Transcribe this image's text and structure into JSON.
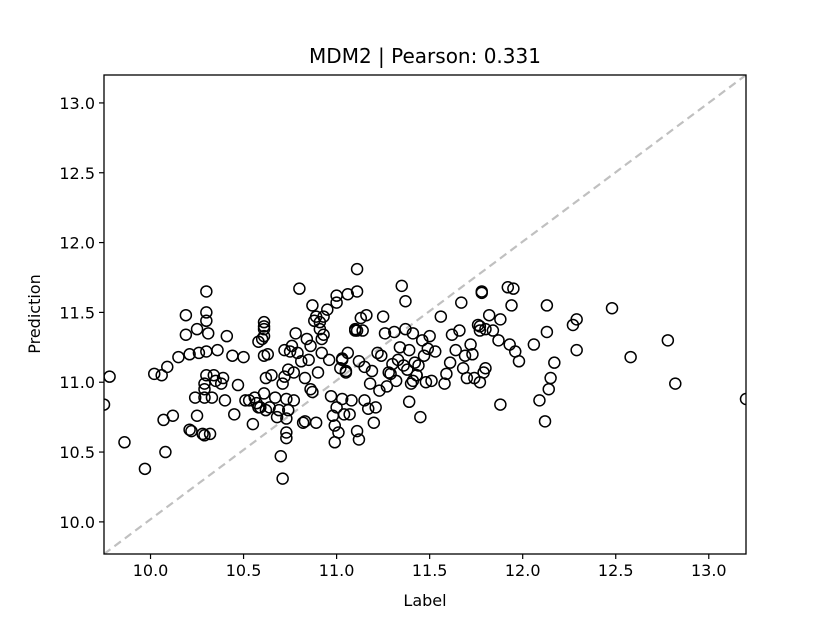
{
  "chart_data": {
    "type": "scatter",
    "title": "MDM2  |  Pearson: 0.331",
    "xlabel": "Label",
    "ylabel": "Prediction",
    "xlim": [
      9.75,
      13.2
    ],
    "ylim": [
      9.77,
      13.2
    ],
    "xticks": [
      "10.0",
      "10.5",
      "11.0",
      "11.5",
      "12.0",
      "12.5",
      "13.0"
    ],
    "yticks": [
      "10.0",
      "10.5",
      "11.0",
      "11.5",
      "12.0",
      "12.5",
      "13.0"
    ],
    "grid": false,
    "reference_line": {
      "style": "dashed",
      "color": "#c0c0c0",
      "from": [
        9.75,
        9.77
      ],
      "to": [
        13.2,
        13.2
      ]
    },
    "marker": {
      "shape": "open-circle",
      "edge_color": "#000000"
    },
    "points": [
      [
        9.75,
        10.84
      ],
      [
        9.78,
        11.04
      ],
      [
        9.86,
        10.57
      ],
      [
        9.97,
        10.38
      ],
      [
        10.02,
        11.06
      ],
      [
        10.06,
        11.05
      ],
      [
        10.07,
        10.73
      ],
      [
        10.08,
        10.5
      ],
      [
        10.09,
        11.11
      ],
      [
        10.12,
        10.76
      ],
      [
        10.15,
        11.18
      ],
      [
        10.19,
        11.48
      ],
      [
        10.19,
        11.34
      ],
      [
        10.21,
        11.2
      ],
      [
        10.21,
        10.66
      ],
      [
        10.22,
        10.65
      ],
      [
        10.24,
        10.89
      ],
      [
        10.25,
        11.38
      ],
      [
        10.25,
        10.76
      ],
      [
        10.26,
        11.21
      ],
      [
        10.28,
        10.63
      ],
      [
        10.29,
        10.99
      ],
      [
        10.29,
        10.95
      ],
      [
        10.29,
        10.89
      ],
      [
        10.29,
        10.62
      ],
      [
        10.3,
        11.65
      ],
      [
        10.3,
        11.5
      ],
      [
        10.3,
        11.44
      ],
      [
        10.3,
        11.05
      ],
      [
        10.3,
        11.22
      ],
      [
        10.31,
        11.35
      ],
      [
        10.32,
        10.63
      ],
      [
        10.33,
        10.89
      ],
      [
        10.34,
        11.05
      ],
      [
        10.35,
        11.01
      ],
      [
        10.36,
        11.23
      ],
      [
        10.38,
        10.99
      ],
      [
        10.39,
        11.03
      ],
      [
        10.4,
        10.87
      ],
      [
        10.41,
        11.33
      ],
      [
        10.44,
        11.19
      ],
      [
        10.45,
        10.77
      ],
      [
        10.47,
        10.98
      ],
      [
        10.5,
        11.18
      ],
      [
        10.51,
        10.87
      ],
      [
        10.53,
        10.87
      ],
      [
        10.55,
        10.7
      ],
      [
        10.56,
        10.89
      ],
      [
        10.57,
        10.85
      ],
      [
        10.58,
        10.82
      ],
      [
        10.58,
        11.29
      ],
      [
        10.59,
        10.82
      ],
      [
        10.6,
        11.31
      ],
      [
        10.61,
        11.43
      ],
      [
        10.61,
        11.4
      ],
      [
        10.61,
        11.38
      ],
      [
        10.61,
        11.33
      ],
      [
        10.61,
        11.19
      ],
      [
        10.61,
        10.92
      ],
      [
        10.62,
        10.8
      ],
      [
        10.62,
        11.03
      ],
      [
        10.63,
        11.2
      ],
      [
        10.64,
        10.82
      ],
      [
        10.65,
        11.05
      ],
      [
        10.67,
        10.89
      ],
      [
        10.68,
        10.75
      ],
      [
        10.69,
        10.8
      ],
      [
        10.7,
        10.47
      ],
      [
        10.71,
        10.99
      ],
      [
        10.71,
        10.31
      ],
      [
        10.72,
        11.23
      ],
      [
        10.72,
        11.04
      ],
      [
        10.73,
        10.64
      ],
      [
        10.73,
        10.6
      ],
      [
        10.73,
        10.74
      ],
      [
        10.73,
        10.88
      ],
      [
        10.74,
        10.8
      ],
      [
        10.74,
        11.09
      ],
      [
        10.75,
        11.22
      ],
      [
        10.76,
        11.26
      ],
      [
        10.77,
        11.07
      ],
      [
        10.77,
        10.87
      ],
      [
        10.78,
        11.35
      ],
      [
        10.79,
        11.21
      ],
      [
        10.8,
        11.67
      ],
      [
        10.81,
        11.15
      ],
      [
        10.82,
        10.71
      ],
      [
        10.83,
        10.72
      ],
      [
        10.83,
        11.03
      ],
      [
        10.84,
        11.31
      ],
      [
        10.85,
        11.16
      ],
      [
        10.86,
        10.95
      ],
      [
        10.86,
        11.26
      ],
      [
        10.87,
        11.55
      ],
      [
        10.87,
        10.93
      ],
      [
        10.88,
        11.44
      ],
      [
        10.89,
        11.47
      ],
      [
        10.89,
        10.71
      ],
      [
        10.9,
        11.07
      ],
      [
        10.91,
        11.38
      ],
      [
        10.91,
        11.43
      ],
      [
        10.92,
        11.31
      ],
      [
        10.92,
        11.21
      ],
      [
        10.93,
        11.47
      ],
      [
        10.93,
        11.34
      ],
      [
        10.95,
        11.52
      ],
      [
        10.96,
        11.16
      ],
      [
        10.97,
        10.9
      ],
      [
        10.98,
        10.76
      ],
      [
        10.99,
        10.57
      ],
      [
        10.99,
        10.69
      ],
      [
        11.0,
        11.62
      ],
      [
        11.0,
        11.57
      ],
      [
        11.0,
        10.82
      ],
      [
        11.01,
        10.64
      ],
      [
        11.02,
        11.1
      ],
      [
        11.03,
        11.16
      ],
      [
        11.03,
        11.17
      ],
      [
        11.03,
        10.88
      ],
      [
        11.04,
        10.77
      ],
      [
        11.05,
        11.07
      ],
      [
        11.05,
        11.08
      ],
      [
        11.06,
        11.63
      ],
      [
        11.06,
        11.21
      ],
      [
        11.07,
        10.77
      ],
      [
        11.08,
        10.87
      ],
      [
        11.1,
        11.38
      ],
      [
        11.1,
        11.37
      ],
      [
        11.11,
        11.37
      ],
      [
        11.11,
        10.65
      ],
      [
        11.11,
        11.81
      ],
      [
        11.11,
        11.65
      ],
      [
        11.12,
        10.59
      ],
      [
        11.12,
        11.15
      ],
      [
        11.13,
        11.46
      ],
      [
        11.14,
        11.37
      ],
      [
        11.15,
        10.87
      ],
      [
        11.15,
        11.11
      ],
      [
        11.16,
        11.48
      ],
      [
        11.17,
        10.81
      ],
      [
        11.18,
        10.99
      ],
      [
        11.19,
        11.08
      ],
      [
        11.2,
        10.71
      ],
      [
        11.21,
        10.82
      ],
      [
        11.22,
        11.21
      ],
      [
        11.23,
        10.94
      ],
      [
        11.24,
        11.19
      ],
      [
        11.25,
        11.47
      ],
      [
        11.26,
        11.35
      ],
      [
        11.27,
        10.97
      ],
      [
        11.28,
        11.07
      ],
      [
        11.29,
        11.06
      ],
      [
        11.3,
        11.13
      ],
      [
        11.31,
        11.36
      ],
      [
        11.32,
        11.01
      ],
      [
        11.33,
        11.16
      ],
      [
        11.34,
        11.25
      ],
      [
        11.35,
        11.69
      ],
      [
        11.36,
        11.12
      ],
      [
        11.37,
        11.38
      ],
      [
        11.37,
        11.58
      ],
      [
        11.38,
        11.09
      ],
      [
        11.39,
        10.86
      ],
      [
        11.39,
        11.23
      ],
      [
        11.4,
        10.99
      ],
      [
        11.41,
        11.01
      ],
      [
        11.41,
        11.35
      ],
      [
        11.42,
        11.14
      ],
      [
        11.43,
        11.05
      ],
      [
        11.43,
        11.05
      ],
      [
        11.44,
        11.12
      ],
      [
        11.45,
        10.75
      ],
      [
        11.46,
        11.3
      ],
      [
        11.47,
        11.19
      ],
      [
        11.48,
        11.0
      ],
      [
        11.49,
        11.24
      ],
      [
        11.5,
        11.33
      ],
      [
        11.51,
        11.01
      ],
      [
        11.53,
        11.22
      ],
      [
        11.56,
        11.47
      ],
      [
        11.58,
        10.99
      ],
      [
        11.59,
        11.06
      ],
      [
        11.61,
        11.14
      ],
      [
        11.62,
        11.34
      ],
      [
        11.64,
        11.23
      ],
      [
        11.66,
        11.37
      ],
      [
        11.67,
        11.57
      ],
      [
        11.68,
        11.1
      ],
      [
        11.69,
        11.19
      ],
      [
        11.7,
        11.03
      ],
      [
        11.72,
        11.27
      ],
      [
        11.73,
        11.2
      ],
      [
        11.74,
        11.03
      ],
      [
        11.76,
        11.41
      ],
      [
        11.77,
        11.0
      ],
      [
        11.77,
        11.37
      ],
      [
        11.77,
        11.4
      ],
      [
        11.78,
        11.64
      ],
      [
        11.78,
        11.65
      ],
      [
        11.79,
        11.07
      ],
      [
        11.8,
        11.38
      ],
      [
        11.8,
        11.1
      ],
      [
        11.82,
        11.48
      ],
      [
        11.84,
        11.37
      ],
      [
        11.87,
        11.3
      ],
      [
        11.88,
        10.84
      ],
      [
        11.88,
        11.45
      ],
      [
        11.92,
        11.68
      ],
      [
        11.93,
        11.27
      ],
      [
        11.94,
        11.55
      ],
      [
        11.95,
        11.67
      ],
      [
        11.96,
        11.22
      ],
      [
        11.98,
        11.15
      ],
      [
        12.06,
        11.27
      ],
      [
        12.09,
        10.87
      ],
      [
        12.12,
        10.72
      ],
      [
        12.13,
        11.55
      ],
      [
        12.13,
        11.36
      ],
      [
        12.14,
        10.95
      ],
      [
        12.15,
        11.03
      ],
      [
        12.17,
        11.14
      ],
      [
        12.27,
        11.41
      ],
      [
        12.29,
        11.45
      ],
      [
        12.29,
        11.23
      ],
      [
        12.48,
        11.53
      ],
      [
        12.58,
        11.18
      ],
      [
        12.78,
        11.3
      ],
      [
        12.82,
        10.99
      ],
      [
        13.2,
        10.88
      ]
    ]
  }
}
